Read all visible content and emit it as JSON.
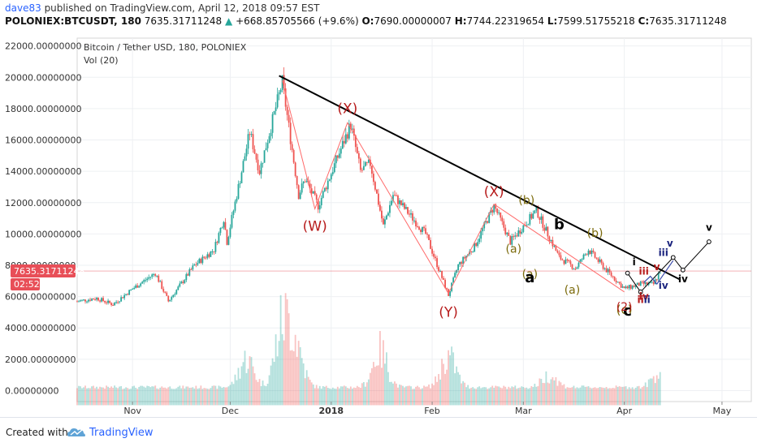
{
  "header": {
    "user": "dave83",
    "published": "published on TradingView.com, April 12, 2018 09:57 EST",
    "symbol": "POLONIEX:BTCUSDT, 180",
    "last": "7635.31711248",
    "change": "+668.85705566 (+9.6%)",
    "o_label": "O:",
    "o": "7690.00000007",
    "h_label": "H:",
    "h": "7744.22319654",
    "l_label": "L:",
    "l": "7599.51755218",
    "c_label": "C:",
    "c": "7635.31711248"
  },
  "legend": {
    "title": "Bitcoin / Tether USD, 180, POLONIEX",
    "vol": "Vol (20)"
  },
  "price_tag": {
    "value": "7635.31711248",
    "countdown": "02:52",
    "color": "#e84f58"
  },
  "footer": {
    "created": "Created with",
    "brand": "TradingView",
    "logo_icon": "tradingview-cloud-logo-icon"
  },
  "colors": {
    "up": "#26a69a",
    "down": "#ef5350",
    "wave_red": "#b71c1c",
    "wave_olive": "#7b6a0a",
    "wave_navy": "#1a237e",
    "trendline": "#000000"
  },
  "chart_data": {
    "type": "candlestick",
    "title": "Bitcoin / Tether USD, 180, POLONIEX",
    "ylim": [
      -700,
      22500
    ],
    "yticks": [
      "22000.00000000",
      "20000.00000000",
      "18000.00000000",
      "16000.00000000",
      "14000.00000000",
      "12000.00000000",
      "10000.00000000",
      "8000.00000000",
      "6000.00000000",
      "4000.00000000",
      "2000.00000000",
      "0.00000000"
    ],
    "ytick_values": [
      22000,
      20000,
      18000,
      16000,
      14000,
      12000,
      10000,
      8000,
      6000,
      4000,
      2000,
      0
    ],
    "xlim": [
      "2017-10-15",
      "2018-05-10"
    ],
    "xticks": [
      {
        "label": "Nov",
        "date": "2017-11-01",
        "bold": false
      },
      {
        "label": "Dec",
        "date": "2017-12-01",
        "bold": false
      },
      {
        "label": "2018",
        "date": "2018-01-01",
        "bold": true
      },
      {
        "label": "Feb",
        "date": "2018-02-01",
        "bold": false
      },
      {
        "label": "Mar",
        "date": "2018-03-01",
        "bold": false
      },
      {
        "label": "Apr",
        "date": "2018-04-01",
        "bold": false
      },
      {
        "label": "May",
        "date": "2018-05-01",
        "bold": false
      }
    ],
    "price_anchors": [
      [
        "2017-10-15",
        5700
      ],
      [
        "2017-10-21",
        5900
      ],
      [
        "2017-10-26",
        5500
      ],
      [
        "2017-11-01",
        6500
      ],
      [
        "2017-11-08",
        7500
      ],
      [
        "2017-11-12",
        5700
      ],
      [
        "2017-11-20",
        8000
      ],
      [
        "2017-11-26",
        9000
      ],
      [
        "2017-11-29",
        11000
      ],
      [
        "2017-11-30",
        9500
      ],
      [
        "2017-12-07",
        16500
      ],
      [
        "2017-12-10",
        14000
      ],
      [
        "2017-12-17",
        19700
      ],
      [
        "2017-12-22",
        12500
      ],
      [
        "2017-12-24",
        13500
      ],
      [
        "2017-12-28",
        11800
      ],
      [
        "2018-01-07",
        17000
      ],
      [
        "2018-01-10",
        14000
      ],
      [
        "2018-01-13",
        14500
      ],
      [
        "2018-01-17",
        10500
      ],
      [
        "2018-01-20",
        12500
      ],
      [
        "2018-01-30",
        10000
      ],
      [
        "2018-02-06",
        6100
      ],
      [
        "2018-02-09",
        8000
      ],
      [
        "2018-02-14",
        9200
      ],
      [
        "2018-02-20",
        11800
      ],
      [
        "2018-02-25",
        9500
      ],
      [
        "2018-03-05",
        11500
      ],
      [
        "2018-03-12",
        8500
      ],
      [
        "2018-03-17",
        7800
      ],
      [
        "2018-03-21",
        9000
      ],
      [
        "2018-03-26",
        7800
      ],
      [
        "2018-04-01",
        6500
      ],
      [
        "2018-04-06",
        6800
      ],
      [
        "2018-04-10",
        6800
      ],
      [
        "2018-04-12",
        7635
      ]
    ],
    "volume_peaks": [
      [
        "2017-12-06",
        2100
      ],
      [
        "2017-12-17",
        4400
      ],
      [
        "2017-12-21",
        3100
      ],
      [
        "2018-01-16",
        2700
      ],
      [
        "2018-02-06",
        2300
      ],
      [
        "2018-03-09",
        900
      ],
      [
        "2018-04-12",
        1200
      ]
    ],
    "trendlines": [
      {
        "name": "resistance",
        "points": [
          [
            "2017-12-16",
            20100
          ],
          [
            "2018-04-18",
            7100
          ]
        ],
        "color": "#000000"
      }
    ],
    "wave_path_red": [
      [
        "2017-12-17",
        19800
      ],
      [
        "2017-12-27",
        11600
      ],
      [
        "2018-01-06",
        17100
      ],
      [
        "2018-02-06",
        6200
      ],
      [
        "2018-02-20",
        11900
      ],
      [
        "2018-04-01",
        6300
      ]
    ],
    "projection_black": [
      [
        "2018-04-02",
        7500
      ],
      [
        "2018-04-06",
        6300
      ],
      [
        "2018-04-16",
        8500
      ],
      [
        "2018-04-19",
        7700
      ],
      [
        "2018-04-27",
        9500
      ]
    ],
    "projection_blue": [
      [
        "2018-04-07",
        6900
      ],
      [
        "2018-04-09",
        7300
      ],
      [
        "2018-04-11",
        6800
      ],
      [
        "2018-04-16",
        8300
      ]
    ],
    "annotations": [
      {
        "text": "(X)",
        "date": "2018-01-06",
        "price": 17700,
        "color": "#b71c1c",
        "size": 17
      },
      {
        "text": "(W)",
        "date": "2017-12-27",
        "price": 10200,
        "color": "#b71c1c",
        "size": 17
      },
      {
        "text": "(Y)",
        "date": "2018-02-06",
        "price": 4700,
        "color": "#b71c1c",
        "size": 17
      },
      {
        "text": "(X)",
        "date": "2018-02-20",
        "price": 12400,
        "color": "#b71c1c",
        "size": 17
      },
      {
        "text": "(b)",
        "date": "2018-03-02",
        "price": 11900,
        "color": "#7b6a0a",
        "size": 14
      },
      {
        "text": "(a)",
        "date": "2018-02-26",
        "price": 8800,
        "color": "#7b6a0a",
        "size": 14
      },
      {
        "text": "(b)",
        "date": "2018-03-23",
        "price": 9800,
        "color": "#7b6a0a",
        "size": 14
      },
      {
        "text": "(a)",
        "date": "2018-03-03",
        "price": 7200,
        "color": "#7b6a0a",
        "size": 14
      },
      {
        "text": "(a)",
        "date": "2018-03-16",
        "price": 6200,
        "color": "#7b6a0a",
        "size": 14
      },
      {
        "text": "(c)",
        "date": "2018-04-01",
        "price": 4900,
        "color": "#7b6a0a",
        "size": 15
      },
      {
        "text": "b",
        "date": "2018-03-12",
        "price": 10300,
        "color": "#000000",
        "size": 18,
        "bold": true
      },
      {
        "text": "a",
        "date": "2018-03-03",
        "price": 6900,
        "color": "#000000",
        "size": 18,
        "bold": true
      },
      {
        "text": "c",
        "date": "2018-04-02",
        "price": 4800,
        "color": "#000000",
        "size": 18,
        "bold": true
      },
      {
        "text": "(2)",
        "date": "2018-04-01",
        "price": 5100,
        "color": "#b71c1c",
        "size": 14
      },
      {
        "text": "i",
        "date": "2018-04-04",
        "price": 8000,
        "color": "#000000",
        "size": 12,
        "bold": true
      },
      {
        "text": "ii",
        "date": "2018-04-06",
        "price": 5600,
        "color": "#b71c1c",
        "size": 12,
        "bold": true
      },
      {
        "text": "iii",
        "date": "2018-04-07",
        "price": 7400,
        "color": "#b71c1c",
        "size": 12,
        "bold": true
      },
      {
        "text": "iv",
        "date": "2018-04-07",
        "price": 5800,
        "color": "#b71c1c",
        "size": 12,
        "bold": true
      },
      {
        "text": "v",
        "date": "2018-04-11",
        "price": 7700,
        "color": "#b71c1c",
        "size": 12,
        "bold": true
      },
      {
        "text": "ii",
        "date": "2018-04-08",
        "price": 5600,
        "color": "#1a237e",
        "size": 12,
        "bold": true
      },
      {
        "text": "iii",
        "date": "2018-04-13",
        "price": 8600,
        "color": "#1a237e",
        "size": 12,
        "bold": true
      },
      {
        "text": "iv",
        "date": "2018-04-13",
        "price": 6500,
        "color": "#1a237e",
        "size": 12,
        "bold": true
      },
      {
        "text": "v",
        "date": "2018-04-15",
        "price": 9200,
        "color": "#1a237e",
        "size": 12,
        "bold": true
      },
      {
        "text": "iv",
        "date": "2018-04-19",
        "price": 6900,
        "color": "#000000",
        "size": 12,
        "bold": true
      },
      {
        "text": "v",
        "date": "2018-04-27",
        "price": 10200,
        "color": "#000000",
        "size": 12,
        "bold": true
      }
    ]
  }
}
